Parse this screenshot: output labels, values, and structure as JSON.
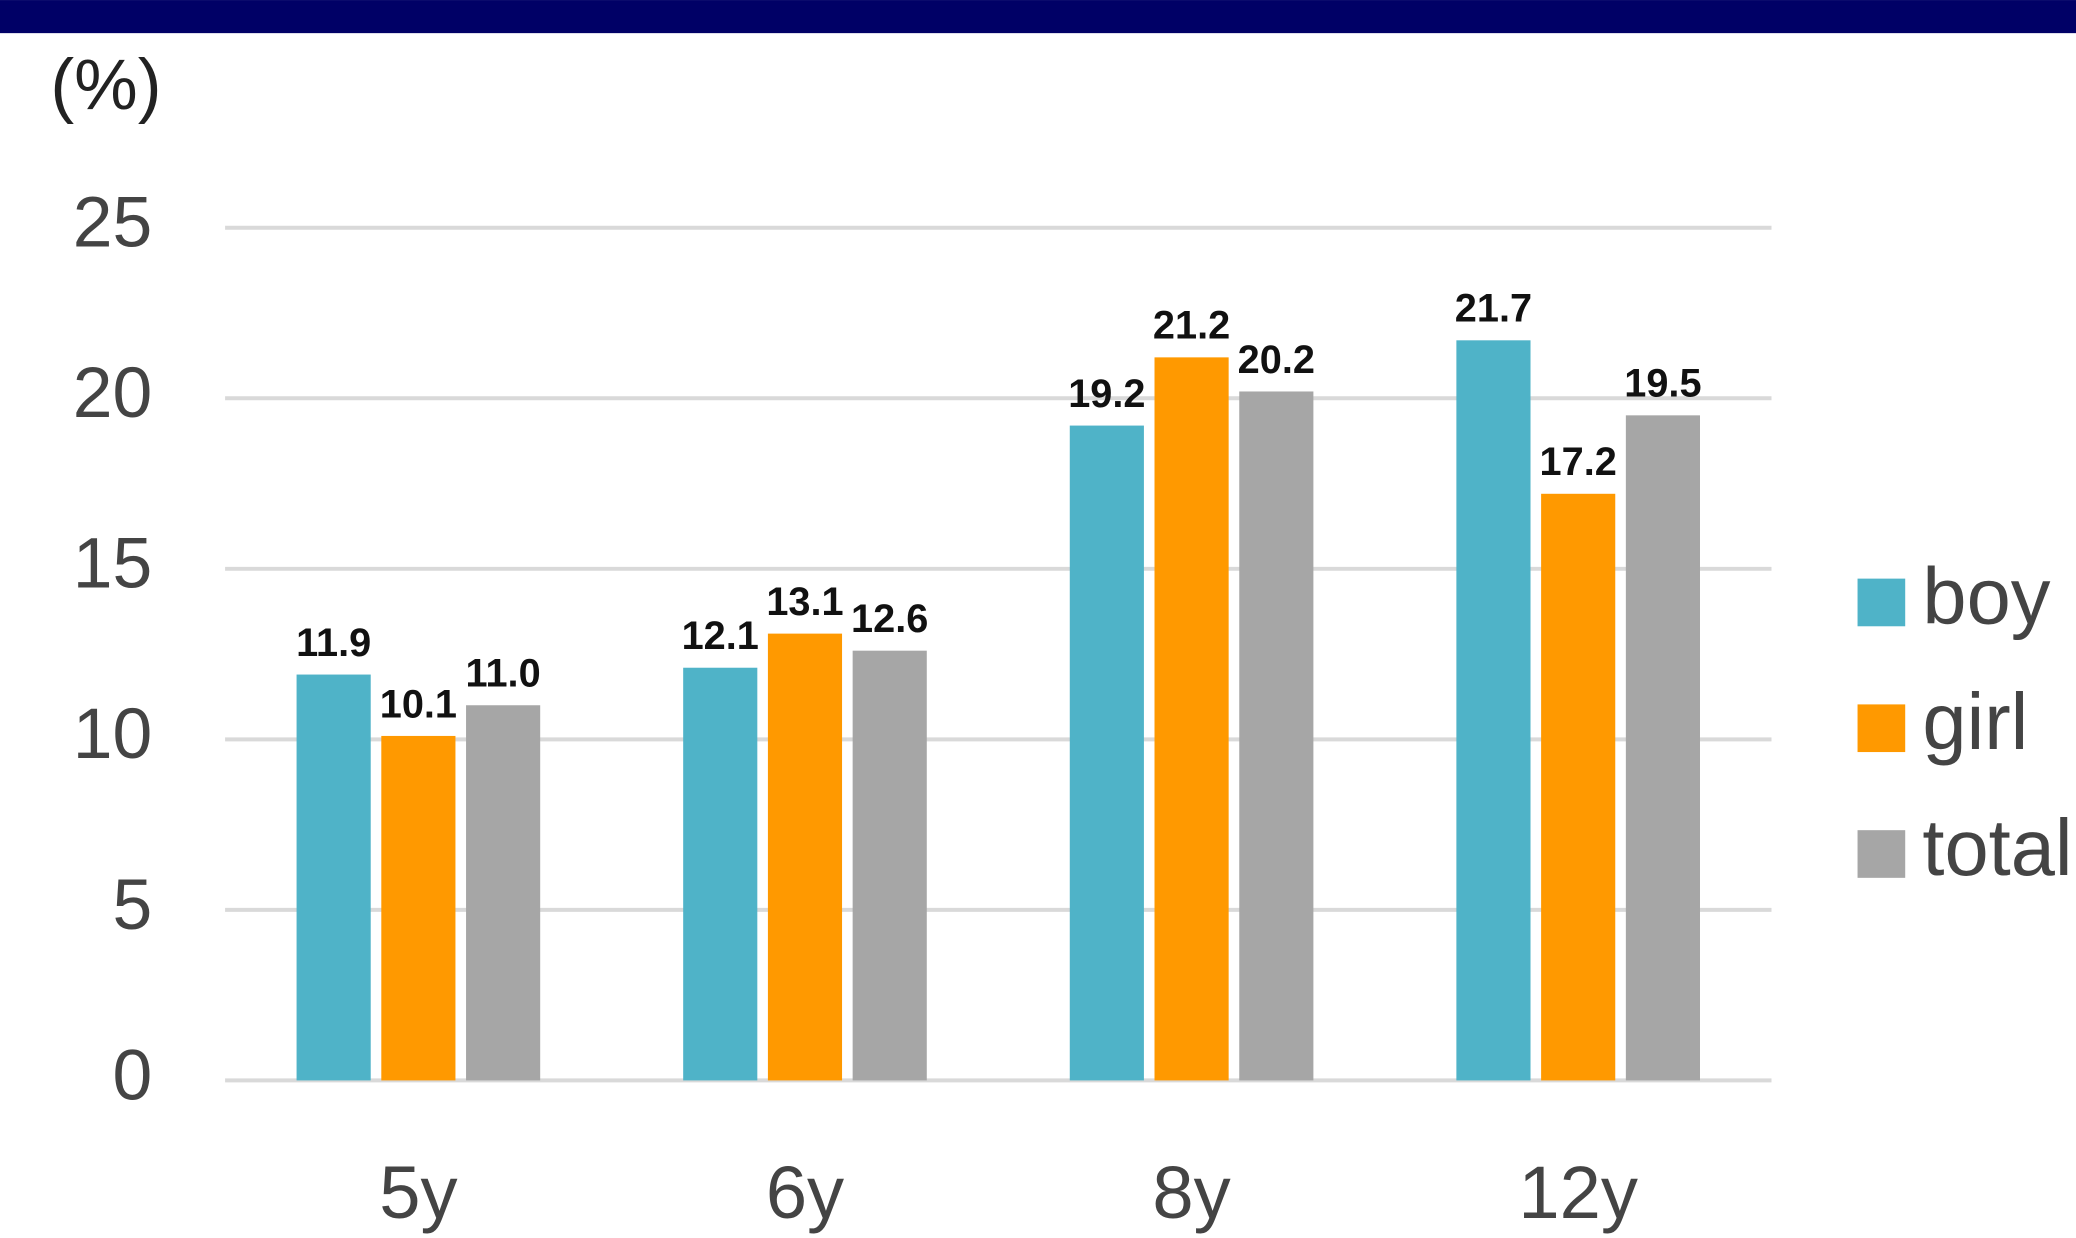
{
  "chart_data": {
    "type": "bar",
    "y_label": "(%)",
    "categories": [
      "5y",
      "6y",
      "8y",
      "12y"
    ],
    "series": [
      {
        "name": "boy",
        "color": "#4fb3c8",
        "values": [
          11.9,
          12.1,
          19.2,
          21.7
        ],
        "value_labels": [
          "11.9",
          "12.1",
          "19.2",
          "21.7"
        ]
      },
      {
        "name": "girl",
        "color": "#ff9900",
        "values": [
          10.1,
          13.1,
          21.2,
          17.2
        ],
        "value_labels": [
          "10.1",
          "13.1",
          "21.2",
          "17.2"
        ]
      },
      {
        "name": "total",
        "color": "#a6a6a6",
        "values": [
          11.0,
          12.6,
          20.2,
          19.5
        ],
        "value_labels": [
          "11.0",
          "12.6",
          "20.2",
          "19.5"
        ]
      }
    ],
    "ylim": [
      0,
      25
    ],
    "yticks": [
      0,
      5,
      10,
      15,
      20,
      25
    ],
    "grid": true,
    "legend": "right"
  }
}
